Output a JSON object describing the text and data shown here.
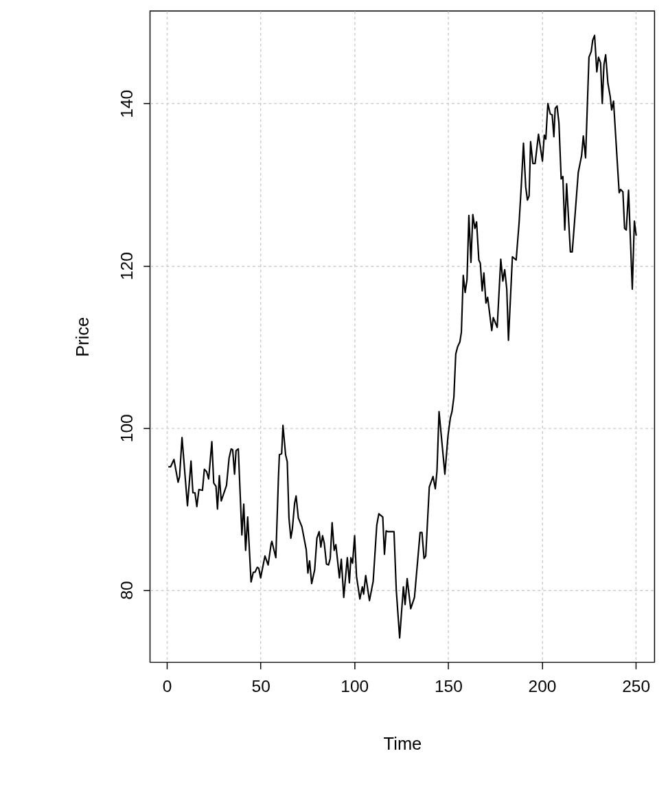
{
  "chart_data": {
    "type": "line",
    "xlabel": "Time",
    "ylabel": "Price",
    "x": [
      0.8,
      2,
      3.8,
      6,
      6.8,
      8.1,
      11,
      12.9,
      13.9,
      15,
      16,
      17.1,
      19,
      20,
      21.2,
      22.3,
      24,
      25,
      26.2,
      27,
      28,
      29,
      31.8,
      33.2,
      34.3,
      35.1,
      36.1,
      36.9,
      38.1,
      40,
      41,
      42,
      43.1,
      44.9,
      46.1,
      47,
      48.2,
      49,
      50,
      52.3,
      54,
      55.6,
      56,
      58.1,
      59.5,
      60,
      61.2,
      61.9,
      63.3,
      64.2,
      65.1,
      66.1,
      66.9,
      68.1,
      68.9,
      70.1,
      72,
      74.3,
      75.2,
      76.1,
      77.2,
      78.8,
      80,
      81.2,
      82.1,
      83,
      83.9,
      85.1,
      86.2,
      87.1,
      88.1,
      89.2,
      90.1,
      92,
      93,
      94.3,
      96.2,
      97.3,
      98.1,
      99,
      100.1,
      101.1,
      102.9,
      104.2,
      104.9,
      106,
      108,
      110,
      111.9,
      113,
      115.1,
      116,
      116.9,
      117.9,
      121.1,
      122.3,
      124.1,
      126.1,
      127,
      128.1,
      130,
      132,
      135,
      136,
      137.1,
      138,
      139.9,
      141.9,
      143.1,
      144,
      145.1,
      148.2,
      149.9,
      151.1,
      152,
      153,
      154,
      155,
      156.2,
      157,
      158,
      159,
      160,
      161,
      162.1,
      163.1,
      164.2,
      165.1,
      166.3,
      167.1,
      168.1,
      169,
      170.1,
      171,
      173.2,
      174,
      176.1,
      178,
      179.1,
      180.1,
      181.2,
      182.1,
      184.2,
      186.2,
      187.8,
      188.9,
      190.1,
      191.3,
      192.2,
      193.1,
      193.9,
      195.1,
      196.3,
      198.1,
      200.2,
      201.2,
      202,
      203.1,
      204.4,
      205.4,
      206.3,
      207,
      208,
      209,
      210.2,
      211.1,
      212.1,
      213.1,
      215.1,
      216.1,
      219.3,
      221.1,
      222,
      223.2,
      225,
      226.2,
      227,
      228,
      229.2,
      230.1,
      231.2,
      232.1,
      233,
      233.9,
      235.1,
      236.3,
      237.1,
      238.1,
      241.1,
      241.9,
      243.1,
      244,
      244.9,
      246.1,
      248.1,
      249.2,
      250.2
    ],
    "series": [
      {
        "color": "#000000",
        "values": [
          95.2,
          95.2,
          96.1,
          93.3,
          94.0,
          98.8,
          90.4,
          95.9,
          92.0,
          92.0,
          90.3,
          92.4,
          92.3,
          94.9,
          94.6,
          93.7,
          98.3,
          93.2,
          92.8,
          90.0,
          94.1,
          91.0,
          92.9,
          96.3,
          97.4,
          97.3,
          94.3,
          97.2,
          97.4,
          86.8,
          90.6,
          84.9,
          89.0,
          81.0,
          82.2,
          82.2,
          82.8,
          82.7,
          81.5,
          84.2,
          83.1,
          85.7,
          86.0,
          84.0,
          93.9,
          96.7,
          96.8,
          100.3,
          96.7,
          95.8,
          88.9,
          86.4,
          87.5,
          90.7,
          91.6,
          88.9,
          87.8,
          85.0,
          82.1,
          83.6,
          80.8,
          82.5,
          86.4,
          87.2,
          85.3,
          86.7,
          85.8,
          83.2,
          83.1,
          83.9,
          88.3,
          84.9,
          85.6,
          81.5,
          83.8,
          79.1,
          84.0,
          80.9,
          84.0,
          83.3,
          86.7,
          81.7,
          78.9,
          80.4,
          79.5,
          81.8,
          78.7,
          81.1,
          88.0,
          89.4,
          89.0,
          84.4,
          87.3,
          87.2,
          87.2,
          80.0,
          74.1,
          80.4,
          78.2,
          81.4,
          77.7,
          79.1,
          87.1,
          87.1,
          83.9,
          84.2,
          92.7,
          94.0,
          92.5,
          94.7,
          102.0,
          94.3,
          99.1,
          101.2,
          102.0,
          103.8,
          109.1,
          110.0,
          110.6,
          111.8,
          118.8,
          116.7,
          118.3,
          126.2,
          120.4,
          126.3,
          124.6,
          125.4,
          120.7,
          120.3,
          116.9,
          119.1,
          115.4,
          116.1,
          112.0,
          113.6,
          112.4,
          120.8,
          118.1,
          119.5,
          117.1,
          110.8,
          121.1,
          120.7,
          125.4,
          129.7,
          135.1,
          129.7,
          128.1,
          128.6,
          135.3,
          132.6,
          132.6,
          136.2,
          132.9,
          136.1,
          135.6,
          140.0,
          138.7,
          138.6,
          135.9,
          139.4,
          139.7,
          137.6,
          130.7,
          131.0,
          124.4,
          130.1,
          121.7,
          121.7,
          131.5,
          133.6,
          136.0,
          133.3,
          145.7,
          146.4,
          147.8,
          148.4,
          143.9,
          145.7,
          145.0,
          140.0,
          144.8,
          146.0,
          142.5,
          140.9,
          139.2,
          140.3,
          129.0,
          129.4,
          129.1,
          124.6,
          124.4,
          129.3,
          117.1,
          125.5,
          123.7
        ]
      }
    ],
    "xlim": [
      -8.96,
      259.96
    ],
    "ylim": [
      71.1,
      151.4
    ],
    "xticks": [
      0,
      50,
      100,
      150,
      200,
      250
    ],
    "yticks": [
      80,
      100,
      120,
      140
    ],
    "grid": true,
    "line_style": "solid",
    "marker": "none"
  }
}
